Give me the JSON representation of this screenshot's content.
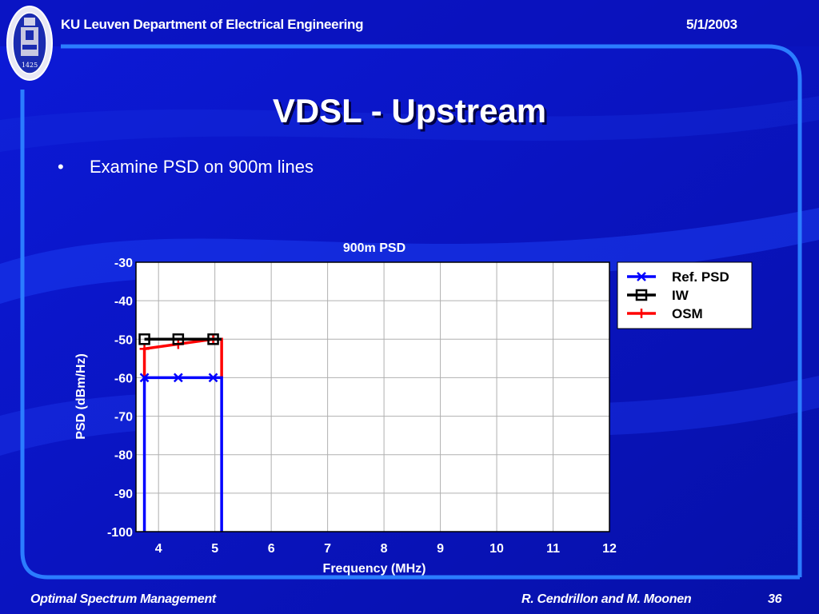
{
  "header": {
    "department": "KU Leuven Department of Electrical Engineering",
    "date": "5/1/2003"
  },
  "slide": {
    "title": "VDSL - Upstream",
    "bullets": [
      "Examine PSD on 900m lines"
    ]
  },
  "footer": {
    "left": "Optimal Spectrum Management",
    "authors": "R. Cendrillon and M. Moonen",
    "page": "36"
  },
  "seal": {
    "year": "1425"
  },
  "colors": {
    "background": "#0a14c8",
    "frame": "#2b7dff",
    "ref_psd": "#0000ff",
    "iw": "#000000",
    "osm": "#ff0000"
  },
  "chart_data": {
    "type": "line",
    "title": "900m PSD",
    "xlabel": "Frequency (MHz)",
    "ylabel": "PSD (dBm/Hz)",
    "xlim": [
      3.6,
      12
    ],
    "ylim": [
      -100,
      -30
    ],
    "xticks": [
      4,
      5,
      6,
      7,
      8,
      9,
      10,
      11,
      12
    ],
    "yticks": [
      -30,
      -40,
      -50,
      -60,
      -70,
      -80,
      -90,
      -100
    ],
    "grid": true,
    "legend_position": "top-right-outside",
    "series": [
      {
        "name": "Ref. PSD",
        "color": "#0000ff",
        "marker": "x",
        "x": [
          3.75,
          3.75,
          5.12,
          5.12
        ],
        "y": [
          -100,
          -60,
          -60,
          -100
        ],
        "marker_x": [
          3.75,
          4.35,
          4.97
        ],
        "marker_y": [
          -60,
          -60,
          -60
        ]
      },
      {
        "name": "IW",
        "color": "#000000",
        "marker": "square",
        "x": [
          3.75,
          5.12
        ],
        "y": [
          -50,
          -50
        ],
        "marker_x": [
          3.75,
          4.35,
          4.97
        ],
        "marker_y": [
          -50,
          -50,
          -50
        ]
      },
      {
        "name": "OSM",
        "color": "#ff0000",
        "marker": "plus",
        "x": [
          3.75,
          3.75,
          4.97,
          5.12,
          5.12
        ],
        "y": [
          -60,
          -52.5,
          -50,
          -50,
          -60
        ],
        "marker_x": [
          3.75,
          4.35,
          4.97
        ],
        "marker_y": [
          -52.5,
          -51.3,
          -50
        ]
      }
    ]
  }
}
